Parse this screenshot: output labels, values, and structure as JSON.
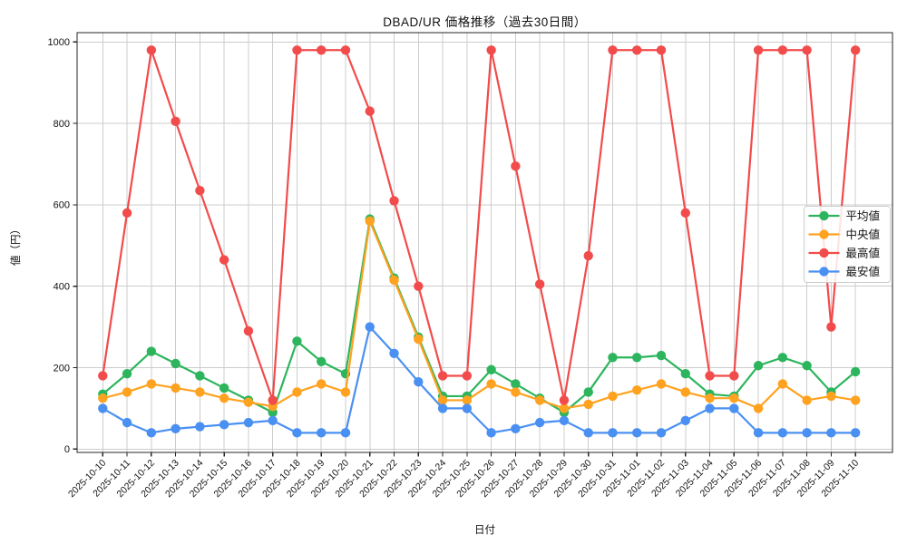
{
  "chart_data": {
    "type": "line",
    "title": "DBAD/UR 価格推移（過去30日間）",
    "xlabel": "日付",
    "ylabel": "値（円）",
    "grid": true,
    "legend_position": "right-middle",
    "marker": "circle",
    "ylim": [
      -8,
      1023
    ],
    "yticks": [
      0,
      200,
      400,
      600,
      800,
      1000
    ],
    "categories": [
      "2025-10-10",
      "2025-10-11",
      "2025-10-12",
      "2025-10-13",
      "2025-10-14",
      "2025-10-15",
      "2025-10-16",
      "2025-10-17",
      "2025-10-18",
      "2025-10-19",
      "2025-10-20",
      "2025-10-21",
      "2025-10-22",
      "2025-10-23",
      "2025-10-24",
      "2025-10-25",
      "2025-10-26",
      "2025-10-27",
      "2025-10-28",
      "2025-10-29",
      "2025-10-30",
      "2025-10-31",
      "2025-11-01",
      "2025-11-02",
      "2025-11-03",
      "2025-11-04",
      "2025-11-05",
      "2025-11-06",
      "2025-11-07",
      "2025-11-08",
      "2025-11-09",
      "2025-11-10"
    ],
    "series": [
      {
        "key": "average",
        "label": "平均値",
        "color": "#2db55d",
        "values": [
          135,
          185,
          240,
          210,
          180,
          150,
          120,
          90,
          265,
          215,
          185,
          565,
          420,
          275,
          130,
          130,
          195,
          160,
          125,
          90,
          140,
          225,
          225,
          230,
          185,
          135,
          130,
          205,
          225,
          205,
          140,
          190
        ]
      },
      {
        "key": "median",
        "label": "中央値",
        "color": "#ffa21f",
        "values": [
          125,
          140,
          160,
          150,
          140,
          125,
          115,
          105,
          140,
          160,
          140,
          560,
          415,
          270,
          120,
          120,
          160,
          140,
          120,
          100,
          110,
          130,
          145,
          160,
          140,
          125,
          125,
          100,
          160,
          120,
          130,
          120
        ]
      },
      {
        "key": "max",
        "label": "最高値",
        "color": "#f24b4b",
        "values": [
          180,
          580,
          980,
          805,
          635,
          465,
          290,
          120,
          980,
          980,
          980,
          830,
          610,
          400,
          180,
          180,
          980,
          695,
          405,
          120,
          475,
          980,
          980,
          980,
          580,
          180,
          180,
          980,
          980,
          980,
          300,
          980
        ]
      },
      {
        "key": "min",
        "label": "最安値",
        "color": "#4a90f2",
        "values": [
          100,
          65,
          40,
          50,
          55,
          60,
          65,
          70,
          40,
          40,
          40,
          300,
          235,
          165,
          100,
          100,
          40,
          50,
          65,
          70,
          40,
          40,
          40,
          40,
          70,
          100,
          100,
          40,
          40,
          40,
          40,
          40
        ]
      }
    ],
    "style": {
      "grid_color": "#cccccc",
      "frame_color": "#262626",
      "background": "#ffffff",
      "legend_border": "#cccccc"
    }
  }
}
